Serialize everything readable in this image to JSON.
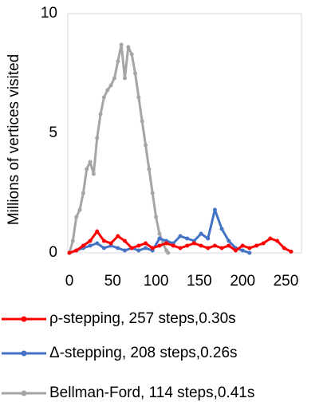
{
  "chart_data": {
    "type": "line",
    "ylabel": "Millions of vertices visited",
    "xlim": [
      0,
      268
    ],
    "xticks": [
      0,
      50,
      100,
      150,
      200,
      250
    ],
    "ylim": [
      0,
      10
    ],
    "yticks": [
      0,
      5,
      10
    ],
    "series": [
      {
        "name": "ρ-stepping, 257 steps,0.30s",
        "color": "#ff0000",
        "x": [
          0,
          8,
          16,
          24,
          32,
          40,
          48,
          56,
          64,
          72,
          80,
          88,
          96,
          104,
          112,
          120,
          128,
          136,
          144,
          152,
          160,
          168,
          176,
          184,
          192,
          200,
          208,
          216,
          224,
          232,
          240,
          248,
          256
        ],
        "values": [
          0,
          0.1,
          0.3,
          0.5,
          0.9,
          0.5,
          0.4,
          0.7,
          0.5,
          0.2,
          0.3,
          0.4,
          0.2,
          0.3,
          0.4,
          0.3,
          0.2,
          0.3,
          0.4,
          0.3,
          0.2,
          0.3,
          0.2,
          0.3,
          0.1,
          0.3,
          0.2,
          0.3,
          0.4,
          0.6,
          0.5,
          0.2,
          0.05
        ]
      },
      {
        "name": "Δ-stepping, 208 steps,0.26s",
        "color": "#4472c4",
        "x": [
          0,
          8,
          16,
          24,
          32,
          40,
          48,
          56,
          64,
          72,
          80,
          88,
          96,
          104,
          112,
          120,
          128,
          136,
          144,
          152,
          160,
          168,
          176,
          184,
          192,
          200,
          208
        ],
        "values": [
          0,
          0.1,
          0.2,
          0.3,
          0.4,
          0.2,
          0.3,
          0.2,
          0.1,
          0.2,
          0.1,
          0.2,
          0.1,
          0.6,
          0.5,
          0.4,
          0.7,
          0.6,
          0.5,
          0.8,
          0.6,
          1.8,
          1.0,
          0.5,
          0.2,
          0.1,
          0
        ]
      },
      {
        "name": "Bellman-Ford, 114 steps,0.41s",
        "color": "#a5a5a5",
        "x": [
          0,
          4,
          8,
          12,
          16,
          20,
          24,
          28,
          32,
          36,
          40,
          44,
          48,
          52,
          56,
          60,
          64,
          68,
          72,
          76,
          80,
          84,
          88,
          92,
          96,
          100,
          104,
          108,
          112,
          114
        ],
        "values": [
          0,
          0.5,
          1.5,
          1.8,
          2.5,
          3.5,
          3.8,
          3.3,
          4.8,
          5.8,
          6.5,
          6.8,
          7.0,
          7.3,
          8.0,
          8.7,
          7.3,
          8.6,
          8.3,
          7.5,
          6.5,
          5.5,
          4.5,
          3.5,
          2.5,
          1.5,
          0.8,
          0.4,
          0.1,
          0
        ]
      }
    ]
  }
}
